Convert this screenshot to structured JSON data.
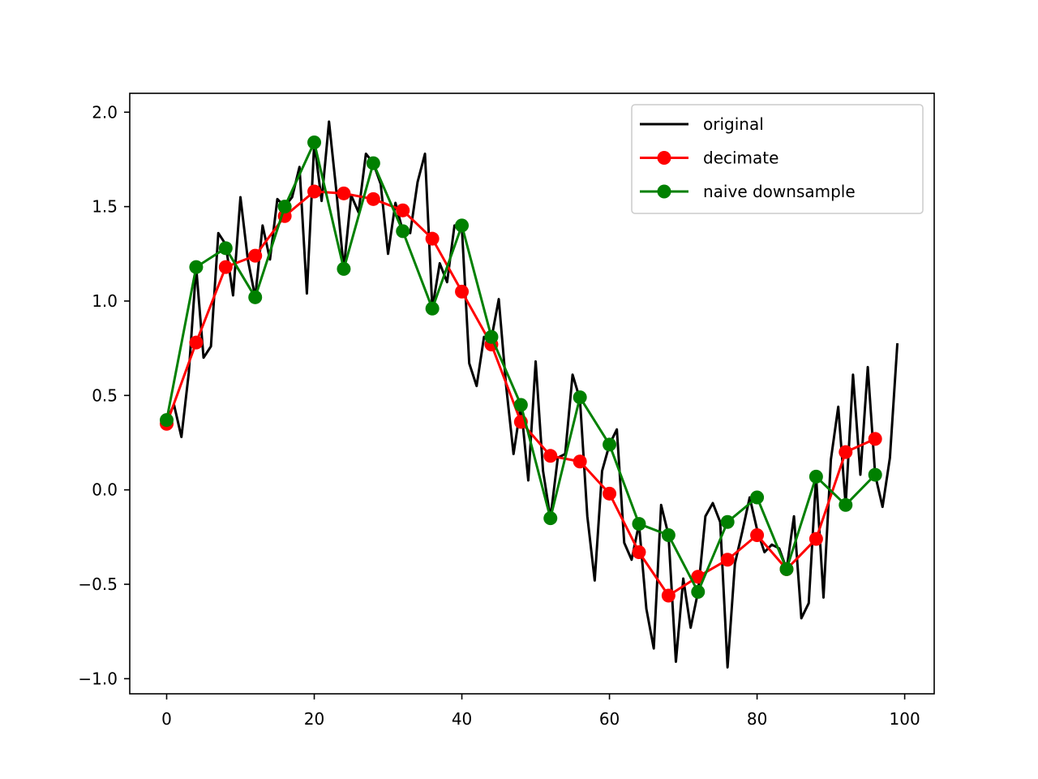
{
  "chart_data": {
    "type": "line",
    "title": "",
    "xlabel": "",
    "ylabel": "",
    "xlim": [
      -5,
      104
    ],
    "ylim": [
      -1.08,
      2.1
    ],
    "x_ticks": [
      0,
      20,
      40,
      60,
      80,
      100
    ],
    "x_tick_labels": [
      "0",
      "20",
      "40",
      "60",
      "80",
      "100"
    ],
    "y_ticks": [
      -1.0,
      -0.5,
      0.0,
      0.5,
      1.0,
      1.5,
      2.0
    ],
    "y_tick_labels": [
      "−1.0",
      "−0.5",
      "0.0",
      "0.5",
      "1.0",
      "1.5",
      "2.0"
    ],
    "grid": false,
    "legend_position": "top-right",
    "series": [
      {
        "name": "original",
        "color": "#000000",
        "marker": "none",
        "x": [
          0,
          1,
          2,
          3,
          4,
          5,
          6,
          7,
          8,
          9,
          10,
          11,
          12,
          13,
          14,
          15,
          16,
          17,
          18,
          19,
          20,
          21,
          22,
          23,
          24,
          25,
          26,
          27,
          28,
          29,
          30,
          31,
          32,
          33,
          34,
          35,
          36,
          37,
          38,
          39,
          40,
          41,
          42,
          43,
          44,
          45,
          46,
          47,
          48,
          49,
          50,
          51,
          52,
          53,
          54,
          55,
          56,
          57,
          58,
          59,
          60,
          61,
          62,
          63,
          64,
          65,
          66,
          67,
          68,
          69,
          70,
          71,
          72,
          73,
          74,
          75,
          76,
          77,
          78,
          79,
          80,
          81,
          82,
          83,
          84,
          85,
          86,
          87,
          88,
          89,
          90,
          91,
          92,
          93,
          94,
          95,
          96,
          97,
          98,
          99
        ],
        "y": [
          0.37,
          0.45,
          0.28,
          0.62,
          1.18,
          0.7,
          0.76,
          1.36,
          1.3,
          1.03,
          1.55,
          1.22,
          1.02,
          1.4,
          1.22,
          1.54,
          1.5,
          1.55,
          1.71,
          1.04,
          1.84,
          1.53,
          1.95,
          1.58,
          1.17,
          1.56,
          1.47,
          1.78,
          1.73,
          1.62,
          1.25,
          1.52,
          1.37,
          1.36,
          1.63,
          1.78,
          0.96,
          1.2,
          1.1,
          1.4,
          1.39,
          0.67,
          0.55,
          0.81,
          0.8,
          1.01,
          0.55,
          0.19,
          0.45,
          0.05,
          0.68,
          0.1,
          -0.15,
          0.17,
          0.19,
          0.61,
          0.48,
          -0.14,
          -0.48,
          0.1,
          0.24,
          0.32,
          -0.28,
          -0.37,
          -0.18,
          -0.63,
          -0.84,
          -0.08,
          -0.24,
          -0.91,
          -0.47,
          -0.73,
          -0.54,
          -0.14,
          -0.07,
          -0.17,
          -0.94,
          -0.39,
          -0.22,
          -0.04,
          -0.21,
          -0.33,
          -0.29,
          -0.31,
          -0.42,
          -0.14,
          -0.68,
          -0.6,
          0.07,
          -0.57,
          0.16,
          0.44,
          -0.08,
          0.61,
          0.08,
          0.65,
          0.08,
          -0.09,
          0.17,
          0.77
        ]
      },
      {
        "name": "decimate",
        "color": "#ff0000",
        "marker": "circle",
        "x": [
          0,
          4,
          8,
          12,
          16,
          20,
          24,
          28,
          32,
          36,
          40,
          44,
          48,
          52,
          56,
          60,
          64,
          68,
          72,
          76,
          80,
          84,
          88,
          92,
          96
        ],
        "y": [
          0.35,
          0.78,
          1.18,
          1.24,
          1.45,
          1.58,
          1.57,
          1.54,
          1.48,
          1.33,
          1.05,
          0.77,
          0.36,
          0.18,
          0.15,
          -0.02,
          -0.33,
          -0.56,
          -0.46,
          -0.37,
          -0.24,
          -0.42,
          -0.26,
          0.2,
          0.27
        ]
      },
      {
        "name": "naive downsample",
        "color": "#008000",
        "marker": "circle",
        "x": [
          0,
          4,
          8,
          12,
          16,
          20,
          24,
          28,
          32,
          36,
          40,
          44,
          48,
          52,
          56,
          60,
          64,
          68,
          72,
          76,
          80,
          84,
          88,
          92,
          96
        ],
        "y": [
          0.37,
          1.18,
          1.28,
          1.02,
          1.5,
          1.84,
          1.17,
          1.73,
          1.37,
          0.96,
          1.4,
          0.81,
          0.45,
          -0.15,
          0.49,
          0.24,
          -0.18,
          -0.24,
          -0.54,
          -0.17,
          -0.04,
          -0.42,
          0.07,
          -0.08,
          0.08
        ]
      }
    ]
  }
}
